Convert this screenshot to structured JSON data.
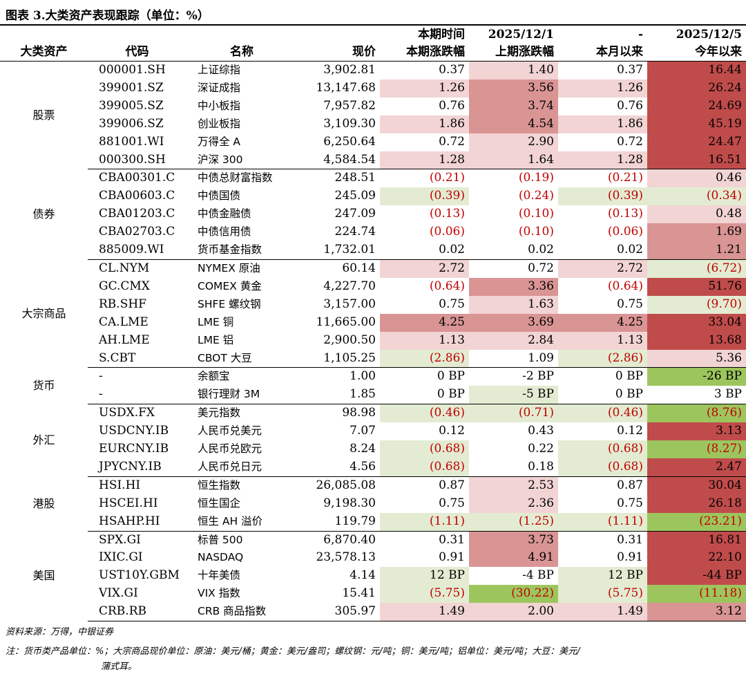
{
  "title": "图表 3.大类资产表现跟踪（单位：%）",
  "header": {
    "row1": [
      "",
      "",
      "",
      "",
      "本期时间",
      "2025/12/1",
      "-",
      "2025/12/5"
    ],
    "row2": [
      "大类资产",
      "代码",
      "名称",
      "现价",
      "本期涨跌幅",
      "上期涨跌幅",
      "本月以来",
      "今年以来"
    ]
  },
  "colors": {
    "light_red": "#f2d4d4",
    "mid_red": "#d99494",
    "dark_red": "#c04b4b",
    "light_green": "#e3ecd2",
    "mid_green": "#cfe0b0",
    "dark_green": "#9dc55d",
    "negative_text": "#c00000"
  },
  "groups": [
    {
      "category": "股票",
      "rows": [
        {
          "code": "000001.SH",
          "name": "上证综指",
          "price": "3,902.81",
          "cur": "0.37",
          "prev": "1.40",
          "mtd": "0.37",
          "ytd": "16.44",
          "bg": [
            "",
            "light_red",
            "",
            "dark_red"
          ]
        },
        {
          "code": "399001.SZ",
          "name": "深证成指",
          "price": "13,147.68",
          "cur": "1.26",
          "prev": "3.56",
          "mtd": "1.26",
          "ytd": "26.24",
          "bg": [
            "light_red",
            "mid_red",
            "light_red",
            "dark_red"
          ]
        },
        {
          "code": "399005.SZ",
          "name": "中小板指",
          "price": "7,957.82",
          "cur": "0.76",
          "prev": "3.74",
          "mtd": "0.76",
          "ytd": "24.69",
          "bg": [
            "",
            "mid_red",
            "",
            "dark_red"
          ]
        },
        {
          "code": "399006.SZ",
          "name": "创业板指",
          "price": "3,109.30",
          "cur": "1.86",
          "prev": "4.54",
          "mtd": "1.86",
          "ytd": "45.19",
          "bg": [
            "light_red",
            "mid_red",
            "light_red",
            "dark_red"
          ]
        },
        {
          "code": "881001.WI",
          "name": "万得全 A",
          "price": "6,250.64",
          "cur": "0.72",
          "prev": "2.90",
          "mtd": "0.72",
          "ytd": "24.47",
          "bg": [
            "",
            "light_red",
            "",
            "dark_red"
          ]
        },
        {
          "code": "000300.SH",
          "name": "沪深 300",
          "price": "4,584.54",
          "cur": "1.28",
          "prev": "1.64",
          "mtd": "1.28",
          "ytd": "16.51",
          "bg": [
            "light_red",
            "light_red",
            "light_red",
            "dark_red"
          ]
        }
      ]
    },
    {
      "category": "债券",
      "rows": [
        {
          "code": "CBA00301.C",
          "name": "中债总财富指数",
          "price": "248.51",
          "cur": "(0.21)",
          "prev": "(0.19)",
          "mtd": "(0.21)",
          "ytd": "0.46",
          "bg": [
            "",
            "",
            "",
            "light_red"
          ]
        },
        {
          "code": "CBA00603.C",
          "name": "中债国债",
          "price": "245.09",
          "cur": "(0.39)",
          "prev": "(0.24)",
          "mtd": "(0.39)",
          "ytd": "(0.34)",
          "bg": [
            "light_green",
            "",
            "light_green",
            "light_green"
          ]
        },
        {
          "code": "CBA01203.C",
          "name": "中债金融债",
          "price": "247.09",
          "cur": "(0.13)",
          "prev": "(0.10)",
          "mtd": "(0.13)",
          "ytd": "0.48",
          "bg": [
            "",
            "",
            "",
            "light_red"
          ]
        },
        {
          "code": "CBA02703.C",
          "name": "中债信用债",
          "price": "224.74",
          "cur": "(0.06)",
          "prev": "(0.10)",
          "mtd": "(0.06)",
          "ytd": "1.69",
          "bg": [
            "",
            "",
            "",
            "mid_red"
          ]
        },
        {
          "code": "885009.WI",
          "name": "货币基金指数",
          "price": "1,732.01",
          "cur": "0.02",
          "prev": "0.02",
          "mtd": "0.02",
          "ytd": "1.21",
          "bg": [
            "",
            "",
            "",
            "mid_red"
          ]
        }
      ]
    },
    {
      "category": "大宗商品",
      "rows": [
        {
          "code": "CL.NYM",
          "name": "NYMEX 原油",
          "price": "60.14",
          "cur": "2.72",
          "prev": "0.72",
          "mtd": "2.72",
          "ytd": "(6.72)",
          "bg": [
            "light_red",
            "",
            "light_red",
            "light_green"
          ]
        },
        {
          "code": "GC.CMX",
          "name": "COMEX 黄金",
          "price": "4,227.70",
          "cur": "(0.64)",
          "prev": "3.36",
          "mtd": "(0.64)",
          "ytd": "51.76",
          "bg": [
            "",
            "mid_red",
            "",
            "dark_red"
          ]
        },
        {
          "code": "RB.SHF",
          "name": "SHFE 螺纹钢",
          "price": "3,157.00",
          "cur": "0.75",
          "prev": "1.63",
          "mtd": "0.75",
          "ytd": "(9.70)",
          "bg": [
            "",
            "light_red",
            "",
            "light_green"
          ]
        },
        {
          "code": "CA.LME",
          "name": "LME 铜",
          "price": "11,665.00",
          "cur": "4.25",
          "prev": "3.69",
          "mtd": "4.25",
          "ytd": "33.04",
          "bg": [
            "mid_red",
            "mid_red",
            "mid_red",
            "dark_red"
          ]
        },
        {
          "code": "AH.LME",
          "name": "LME 铝",
          "price": "2,900.50",
          "cur": "1.13",
          "prev": "2.84",
          "mtd": "1.13",
          "ytd": "13.68",
          "bg": [
            "light_red",
            "light_red",
            "light_red",
            "dark_red"
          ]
        },
        {
          "code": "S.CBT",
          "name": "CBOT 大豆",
          "price": "1,105.25",
          "cur": "(2.86)",
          "prev": "1.09",
          "mtd": "(2.86)",
          "ytd": "5.36",
          "bg": [
            "light_green",
            "",
            "light_green",
            "light_red"
          ]
        }
      ]
    },
    {
      "category": "货币",
      "rows": [
        {
          "code": "-",
          "name": "余额宝",
          "price": "1.00",
          "cur": "0 BP",
          "prev": "-2 BP",
          "mtd": "0 BP",
          "ytd": "-26 BP",
          "bg": [
            "",
            "",
            "",
            "dark_green"
          ]
        },
        {
          "code": "-",
          "name": "银行理财 3M",
          "price": "1.85",
          "cur": "0 BP",
          "prev": "-5 BP",
          "mtd": "0 BP",
          "ytd": "3 BP",
          "bg": [
            "",
            "light_green",
            "",
            ""
          ]
        }
      ]
    },
    {
      "category": "外汇",
      "rows": [
        {
          "code": "USDX.FX",
          "name": "美元指数",
          "price": "98.98",
          "cur": "(0.46)",
          "prev": "(0.71)",
          "mtd": "(0.46)",
          "ytd": "(8.76)",
          "bg": [
            "light_green",
            "light_green",
            "light_green",
            "dark_green"
          ]
        },
        {
          "code": "USDCNY.IB",
          "name": "人民币兑美元",
          "price": "7.07",
          "cur": "0.12",
          "prev": "0.43",
          "mtd": "0.12",
          "ytd": "3.13",
          "bg": [
            "",
            "",
            "",
            "dark_red"
          ]
        },
        {
          "code": "EURCNY.IB",
          "name": "人民币兑欧元",
          "price": "8.24",
          "cur": "(0.68)",
          "prev": "0.22",
          "mtd": "(0.68)",
          "ytd": "(8.27)",
          "bg": [
            "light_green",
            "",
            "light_green",
            "dark_green"
          ]
        },
        {
          "code": "JPYCNY.IB",
          "name": "人民币兑日元",
          "price": "4.56",
          "cur": "(0.68)",
          "prev": "0.18",
          "mtd": "(0.68)",
          "ytd": "2.47",
          "bg": [
            "light_green",
            "",
            "light_green",
            "dark_red"
          ]
        }
      ]
    },
    {
      "category": "港股",
      "rows": [
        {
          "code": "HSI.HI",
          "name": "恒生指数",
          "price": "26,085.08",
          "cur": "0.87",
          "prev": "2.53",
          "mtd": "0.87",
          "ytd": "30.04",
          "bg": [
            "",
            "light_red",
            "",
            "dark_red"
          ]
        },
        {
          "code": "HSCEI.HI",
          "name": "恒生国企",
          "price": "9,198.30",
          "cur": "0.75",
          "prev": "2.36",
          "mtd": "0.75",
          "ytd": "26.18",
          "bg": [
            "",
            "light_red",
            "",
            "dark_red"
          ]
        },
        {
          "code": "HSAHP.HI",
          "name": "恒生 AH 溢价",
          "price": "119.79",
          "cur": "(1.11)",
          "prev": "(1.25)",
          "mtd": "(1.11)",
          "ytd": "(23.21)",
          "bg": [
            "light_green",
            "light_green",
            "light_green",
            "dark_green"
          ]
        }
      ]
    },
    {
      "category": "美国",
      "rows": [
        {
          "code": "SPX.GI",
          "name": "标普 500",
          "price": "6,870.40",
          "cur": "0.31",
          "prev": "3.73",
          "mtd": "0.31",
          "ytd": "16.81",
          "bg": [
            "",
            "mid_red",
            "",
            "dark_red"
          ]
        },
        {
          "code": "IXIC.GI",
          "name": "NASDAQ",
          "price": "23,578.13",
          "cur": "0.91",
          "prev": "4.91",
          "mtd": "0.91",
          "ytd": "22.10",
          "bg": [
            "",
            "mid_red",
            "",
            "dark_red"
          ]
        },
        {
          "code": "UST10Y.GBM",
          "name": "十年美债",
          "price": "4.14",
          "cur": "12 BP",
          "prev": "-4 BP",
          "mtd": "12 BP",
          "ytd": "-44 BP",
          "bg": [
            "light_green",
            "",
            "light_green",
            "dark_red"
          ]
        },
        {
          "code": "VIX.GI",
          "name": "VIX 指数",
          "price": "15.41",
          "cur": "(5.75)",
          "prev": "(30.22)",
          "mtd": "(5.75)",
          "ytd": "(11.18)",
          "bg": [
            "light_green",
            "dark_green",
            "light_green",
            "dark_green"
          ]
        },
        {
          "code": "CRB.RB",
          "name": "CRB 商品指数",
          "price": "305.97",
          "cur": "1.49",
          "prev": "2.00",
          "mtd": "1.49",
          "ytd": "3.12",
          "bg": [
            "light_red",
            "light_red",
            "light_red",
            "mid_red"
          ]
        }
      ]
    }
  ],
  "source": "资料来源：万得，中银证券",
  "note_line1": "注：货币类产品单位：%；大宗商品现价单位：原油：美元/桶；黄金：美元/盎司；螺纹钢：元/吨；铜：美元/吨；铝单位：美元/吨；大豆：美元/",
  "note_line2": "蒲式耳。"
}
